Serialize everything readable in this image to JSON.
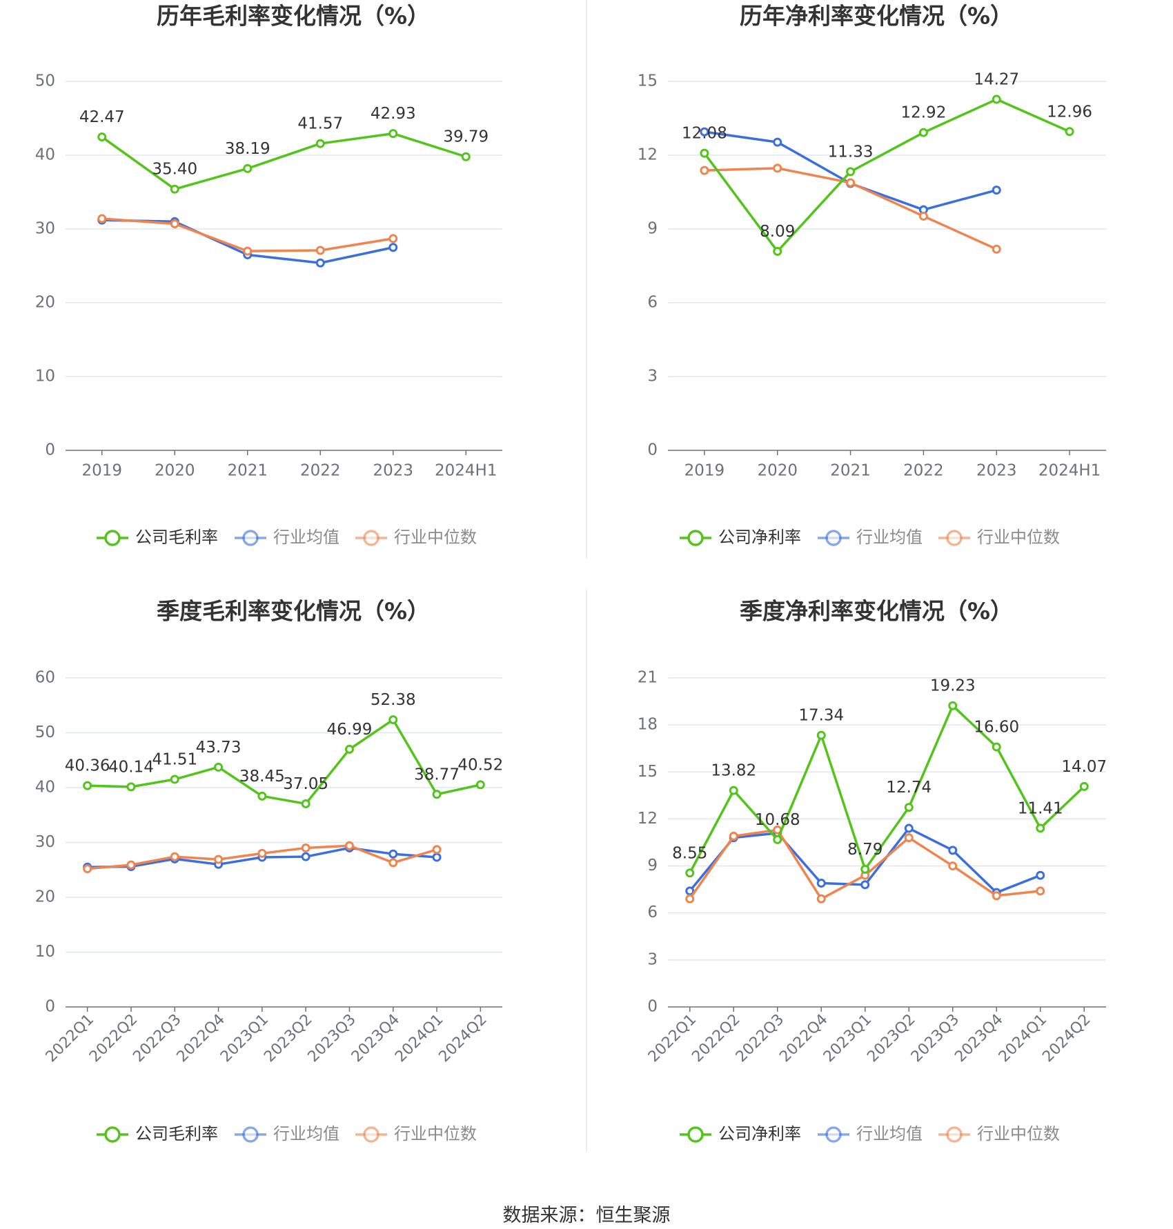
{
  "colors": {
    "company": "#52c41a",
    "industry_avg": "#3b6fe0",
    "industry_median": "#f0844e",
    "grid": "#e0e6f1",
    "axis": "#6e7079",
    "text": "#333333"
  },
  "source_text": "数据来源：恒生聚源",
  "chart_data": [
    {
      "type": "line",
      "title": "历年毛利率变化情况（%）",
      "categories": [
        "2019",
        "2020",
        "2021",
        "2022",
        "2023",
        "2024H1"
      ],
      "ylim": [
        0,
        50
      ],
      "yticks": [
        0,
        10,
        20,
        30,
        40,
        50
      ],
      "rotate_x_labels": false,
      "legend": [
        "公司毛利率",
        "行业均值",
        "行业中位数"
      ],
      "series": [
        {
          "name": "公司毛利率",
          "values": [
            42.47,
            35.4,
            38.19,
            41.57,
            42.93,
            39.79
          ],
          "labels": [
            "42.47",
            "35.40",
            "38.19",
            "41.57",
            "42.93",
            "39.79"
          ]
        },
        {
          "name": "行业均值",
          "values": [
            31.2,
            31.0,
            26.5,
            25.4,
            27.5,
            null
          ]
        },
        {
          "name": "行业中位数",
          "values": [
            31.4,
            30.7,
            27.0,
            27.1,
            28.7,
            null
          ]
        }
      ]
    },
    {
      "type": "line",
      "title": "历年净利率变化情况（%）",
      "categories": [
        "2019",
        "2020",
        "2021",
        "2022",
        "2023",
        "2024H1"
      ],
      "ylim": [
        0,
        15
      ],
      "yticks": [
        0,
        3,
        6,
        9,
        12,
        15
      ],
      "rotate_x_labels": false,
      "legend": [
        "公司净利率",
        "行业均值",
        "行业中位数"
      ],
      "series": [
        {
          "name": "公司净利率",
          "values": [
            12.08,
            8.09,
            11.33,
            12.92,
            14.27,
            12.96
          ],
          "labels": [
            "12.08",
            "8.09",
            "11.33",
            "12.92",
            "14.27",
            "12.96"
          ]
        },
        {
          "name": "行业均值",
          "values": [
            12.95,
            12.53,
            10.85,
            9.78,
            10.58,
            null
          ]
        },
        {
          "name": "行业中位数",
          "values": [
            11.38,
            11.47,
            10.88,
            9.52,
            8.18,
            null
          ]
        }
      ]
    },
    {
      "type": "line",
      "title": "季度毛利率变化情况（%）",
      "categories": [
        "2022Q1",
        "2022Q2",
        "2022Q3",
        "2022Q4",
        "2023Q1",
        "2023Q2",
        "2023Q3",
        "2023Q4",
        "2024Q1",
        "2024Q2"
      ],
      "ylim": [
        0,
        60
      ],
      "yticks": [
        0,
        10,
        20,
        30,
        40,
        50,
        60
      ],
      "rotate_x_labels": true,
      "legend": [
        "公司毛利率",
        "行业均值",
        "行业中位数"
      ],
      "series": [
        {
          "name": "公司毛利率",
          "values": [
            40.36,
            40.14,
            41.51,
            43.73,
            38.45,
            37.05,
            46.99,
            52.38,
            38.77,
            40.52
          ],
          "labels": [
            "40.36",
            "40.14",
            "41.51",
            "43.73",
            "38.45",
            "37.05",
            "46.99",
            "52.38",
            "38.77",
            "40.52"
          ]
        },
        {
          "name": "行业均值",
          "values": [
            25.5,
            25.6,
            27.0,
            26.0,
            27.3,
            27.4,
            29.0,
            27.9,
            27.3,
            null
          ]
        },
        {
          "name": "行业中位数",
          "values": [
            25.2,
            25.9,
            27.4,
            26.9,
            28.0,
            29.0,
            29.4,
            26.3,
            28.7,
            null
          ]
        }
      ]
    },
    {
      "type": "line",
      "title": "季度净利率变化情况（%）",
      "categories": [
        "2022Q1",
        "2022Q2",
        "2022Q3",
        "2022Q4",
        "2023Q1",
        "2023Q2",
        "2023Q3",
        "2023Q4",
        "2024Q1",
        "2024Q2"
      ],
      "ylim": [
        0,
        21
      ],
      "yticks": [
        0,
        3,
        6,
        9,
        12,
        15,
        18,
        21
      ],
      "rotate_x_labels": true,
      "legend": [
        "公司净利率",
        "行业均值",
        "行业中位数"
      ],
      "series": [
        {
          "name": "公司净利率",
          "values": [
            8.55,
            13.82,
            10.68,
            17.34,
            8.79,
            12.74,
            19.23,
            16.6,
            11.41,
            14.07
          ],
          "labels": [
            "8.55",
            "13.82",
            "10.68",
            "17.34",
            "8.79",
            "12.74",
            "19.23",
            "16.60",
            "11.41",
            "14.07"
          ]
        },
        {
          "name": "行业均值",
          "values": [
            7.4,
            10.8,
            11.1,
            7.9,
            7.8,
            11.4,
            10.0,
            7.3,
            8.4,
            null
          ]
        },
        {
          "name": "行业中位数",
          "values": [
            6.9,
            10.9,
            11.3,
            6.9,
            8.4,
            10.8,
            9.0,
            7.1,
            7.4,
            null
          ]
        }
      ]
    }
  ]
}
